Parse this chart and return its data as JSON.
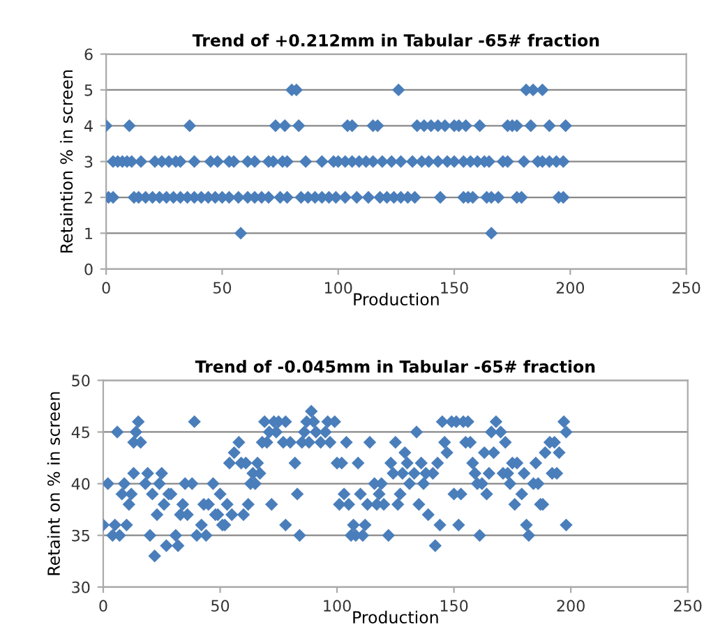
{
  "chart_data": [
    {
      "type": "scatter",
      "title": "Trend of +0.212mm in Tabular -65# fraction",
      "xlabel": "Production",
      "ylabel": "Retaintion % in screen",
      "marker": "diamond",
      "grid": "y",
      "xlim": [
        0,
        250
      ],
      "xticks": [
        0,
        50,
        100,
        150,
        200,
        250
      ],
      "ylim": [
        0,
        6
      ],
      "yticks": [
        0,
        1,
        2,
        3,
        4,
        5,
        6
      ],
      "series": [
        {
          "color": "#4a7ebb",
          "x": [
            0,
            10,
            36,
            73,
            77,
            83,
            104,
            106,
            115,
            117,
            134,
            137,
            140,
            143,
            146,
            150,
            152,
            155,
            161,
            173,
            175,
            177,
            183,
            191,
            198,
            80,
            82,
            126,
            181,
            184,
            188,
            3,
            5,
            7,
            9,
            11,
            15,
            21,
            24,
            27,
            30,
            32,
            38,
            45,
            48,
            53,
            55,
            61,
            64,
            70,
            72,
            76,
            78,
            86,
            93,
            98,
            100,
            103,
            106,
            109,
            112,
            115,
            119,
            123,
            127,
            132,
            136,
            139,
            143,
            147,
            150,
            154,
            157,
            160,
            163,
            165,
            171,
            173,
            180,
            186,
            188,
            191,
            194,
            197,
            1,
            3,
            12,
            14,
            17,
            20,
            23,
            26,
            29,
            32,
            35,
            38,
            41,
            44,
            47,
            50,
            53,
            57,
            61,
            64,
            67,
            70,
            75,
            78,
            84,
            87,
            90,
            93,
            96,
            99,
            103,
            108,
            113,
            118,
            121,
            124,
            127,
            130,
            133,
            144,
            154,
            156,
            158,
            164,
            166,
            169,
            177,
            179,
            195,
            197,
            58,
            166
          ],
          "values": [
            4,
            4,
            4,
            4,
            4,
            4,
            4,
            4,
            4,
            4,
            4,
            4,
            4,
            4,
            4,
            4,
            4,
            4,
            4,
            4,
            4,
            4,
            4,
            4,
            4,
            5,
            5,
            5,
            5,
            5,
            5,
            3,
            3,
            3,
            3,
            3,
            3,
            3,
            3,
            3,
            3,
            3,
            3,
            3,
            3,
            3,
            3,
            3,
            3,
            3,
            3,
            3,
            3,
            3,
            3,
            3,
            3,
            3,
            3,
            3,
            3,
            3,
            3,
            3,
            3,
            3,
            3,
            3,
            3,
            3,
            3,
            3,
            3,
            3,
            3,
            3,
            3,
            3,
            3,
            3,
            3,
            3,
            3,
            3,
            2,
            2,
            2,
            2,
            2,
            2,
            2,
            2,
            2,
            2,
            2,
            2,
            2,
            2,
            2,
            2,
            2,
            2,
            2,
            2,
            2,
            2,
            2,
            2,
            2,
            2,
            2,
            2,
            2,
            2,
            2,
            2,
            2,
            2,
            2,
            2,
            2,
            2,
            2,
            2,
            2,
            2,
            2,
            2,
            2,
            2,
            2,
            2,
            2,
            2,
            1,
            1
          ]
        }
      ]
    },
    {
      "type": "scatter",
      "title": "Trend of -0.045mm in Tabular -65# fraction",
      "xlabel": "Production",
      "ylabel": "Retaint on % in screen",
      "marker": "diamond",
      "grid": "y",
      "xlim": [
        0,
        250
      ],
      "xticks": [
        0,
        50,
        100,
        150,
        200,
        250
      ],
      "ylim": [
        30,
        50
      ],
      "yticks": [
        30,
        35,
        40,
        45,
        50
      ],
      "series": [
        {
          "color": "#4a7ebb",
          "x": [
            0,
            2,
            4,
            5,
            6,
            7,
            8,
            9,
            10,
            11,
            12,
            13,
            13,
            14,
            15,
            16,
            18,
            19,
            20,
            21,
            22,
            23,
            24,
            25,
            26,
            27,
            28,
            29,
            31,
            32,
            33,
            34,
            35,
            36,
            38,
            39,
            40,
            42,
            43,
            44,
            45,
            47,
            48,
            49,
            50,
            51,
            52,
            53,
            54,
            55,
            56,
            58,
            59,
            60,
            61,
            62,
            63,
            64,
            65,
            66,
            67,
            68,
            69,
            70,
            71,
            72,
            73,
            74,
            75,
            77,
            78,
            78,
            80,
            82,
            83,
            84,
            85,
            86,
            87,
            88,
            89,
            90,
            91,
            93,
            95,
            96,
            97,
            99,
            100,
            101,
            102,
            103,
            104,
            105,
            106,
            107,
            108,
            109,
            110,
            111,
            112,
            113,
            114,
            116,
            117,
            118,
            119,
            120,
            122,
            123,
            124,
            125,
            126,
            127,
            128,
            129,
            130,
            131,
            133,
            134,
            135,
            136,
            137,
            138,
            139,
            141,
            142,
            143,
            144,
            145,
            146,
            147,
            149,
            150,
            151,
            152,
            153,
            154,
            155,
            156,
            157,
            158,
            159,
            160,
            161,
            162,
            163,
            164,
            165,
            166,
            167,
            168,
            170,
            171,
            172,
            173,
            174,
            175,
            176,
            177,
            179,
            180,
            181,
            182,
            184,
            185,
            186,
            187,
            188,
            189,
            191,
            192,
            193,
            194,
            195,
            197,
            198,
            198
          ],
          "values": [
            36,
            40,
            35,
            36,
            45,
            35,
            39,
            40,
            36,
            38,
            39,
            41,
            44,
            45,
            46,
            44,
            40,
            41,
            35,
            39,
            33,
            37,
            40,
            41,
            38,
            34,
            39,
            39,
            35,
            34,
            37,
            38,
            40,
            37,
            40,
            46,
            35,
            36,
            38,
            35,
            38,
            40,
            37,
            37,
            39,
            36,
            36,
            38,
            42,
            37,
            43,
            44,
            42,
            37,
            42,
            38,
            40,
            41,
            40,
            42,
            41,
            44,
            46,
            44,
            45,
            38,
            46,
            45,
            46,
            44,
            36,
            46,
            44,
            42,
            39,
            35,
            44,
            45,
            46,
            44,
            47,
            46,
            45,
            44,
            45,
            46,
            44,
            46,
            42,
            38,
            42,
            39,
            44,
            38,
            35,
            36,
            35,
            42,
            39,
            35,
            36,
            38,
            44,
            40,
            38,
            39,
            40,
            38,
            35,
            42,
            41,
            44,
            38,
            39,
            41,
            43,
            42,
            40,
            41,
            45,
            38,
            42,
            40,
            41,
            37,
            41,
            34,
            42,
            36,
            46,
            44,
            43,
            46,
            39,
            46,
            36,
            39,
            46,
            44,
            46,
            44,
            42,
            41,
            40,
            35,
            40,
            43,
            39,
            41,
            45,
            43,
            46,
            45,
            41,
            44,
            41,
            40,
            42,
            38,
            42,
            39,
            41,
            36,
            35,
            40,
            42,
            40,
            38,
            38,
            43,
            44,
            41,
            44,
            41,
            43,
            46,
            45,
            36
          ]
        }
      ]
    }
  ]
}
